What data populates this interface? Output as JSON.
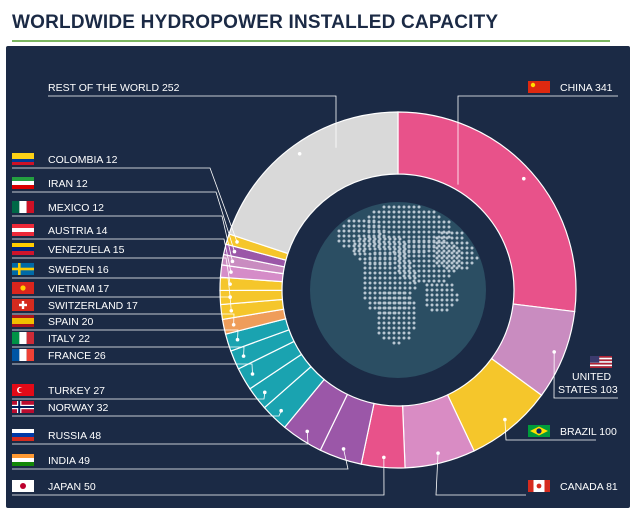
{
  "title": "WORLDWIDE HYDROPOWER INSTALLED CAPACITY",
  "colors": {
    "background": "#1b2a45",
    "title_text": "#1b2a45",
    "title_rule": "#7bb661",
    "globe_outer": "#1b2a45",
    "globe_inner": "#2b4e63",
    "leader_line": "#ffffff"
  },
  "chart_data": {
    "type": "pie",
    "style": "donut",
    "categories": [
      "CHINA",
      "UNITED STATES",
      "BRAZIL",
      "CANADA",
      "JAPAN",
      "INDIA",
      "RUSSIA",
      "NORWAY",
      "TURKEY",
      "FRANCE",
      "ITALY",
      "SPAIN",
      "SWITZERLAND",
      "VIETNAM",
      "SWEDEN",
      "VENEZUELA",
      "AUSTRIA",
      "MEXICO",
      "IRAN",
      "COLOMBIA",
      "REST OF THE WORLD"
    ],
    "values": [
      341,
      103,
      100,
      81,
      50,
      49,
      48,
      32,
      27,
      26,
      22,
      20,
      17,
      17,
      16,
      15,
      14,
      12,
      12,
      12,
      252
    ],
    "slice_colors": [
      "#e8528a",
      "#c98cc0",
      "#f5c62b",
      "#d98cc4",
      "#e8528a",
      "#9b57a8",
      "#9b57a8",
      "#1aa3b0",
      "#1aa3b0",
      "#1aa3b0",
      "#1aa3b0",
      "#1aa3b0",
      "#ef9d5a",
      "#f5c62b",
      "#f5c62b",
      "#f5c62b",
      "#d58cc8",
      "#c98cc0",
      "#9b57a8",
      "#f5c62b",
      "#d9d9d9"
    ],
    "labels": [
      {
        "country": "CHINA",
        "text": "CHINA 341",
        "flag": "china-flag-icon"
      },
      {
        "country": "UNITED STATES",
        "text": "UNITED STATES 103",
        "lines": [
          "UNITED",
          "STATES 103"
        ],
        "flag": "usa-flag-icon"
      },
      {
        "country": "BRAZIL",
        "text": "BRAZIL 100",
        "flag": "brazil-flag-icon"
      },
      {
        "country": "CANADA",
        "text": "CANADA 81",
        "flag": "canada-flag-icon"
      },
      {
        "country": "JAPAN",
        "text": "JAPAN 50",
        "flag": "japan-flag-icon"
      },
      {
        "country": "INDIA",
        "text": "INDIA 49",
        "flag": "india-flag-icon"
      },
      {
        "country": "RUSSIA",
        "text": "RUSSIA 48",
        "flag": "russia-flag-icon"
      },
      {
        "country": "NORWAY",
        "text": "NORWAY 32",
        "flag": "norway-flag-icon"
      },
      {
        "country": "TURKEY",
        "text": "TURKEY 27",
        "flag": "turkey-flag-icon"
      },
      {
        "country": "FRANCE",
        "text": "FRANCE 26",
        "flag": "france-flag-icon"
      },
      {
        "country": "ITALY",
        "text": "ITALY 22",
        "flag": "italy-flag-icon"
      },
      {
        "country": "SPAIN",
        "text": "SPAIN 20",
        "flag": "spain-flag-icon"
      },
      {
        "country": "SWITZERLAND",
        "text": "SWITZERLAND 17",
        "flag": "switzerland-flag-icon"
      },
      {
        "country": "VIETNAM",
        "text": "VIETNAM 17",
        "flag": "vietnam-flag-icon"
      },
      {
        "country": "SWEDEN",
        "text": "SWEDEN 16",
        "flag": "sweden-flag-icon"
      },
      {
        "country": "VENEZUELA",
        "text": "VENEZUELA 15",
        "flag": "venezuela-flag-icon"
      },
      {
        "country": "AUSTRIA",
        "text": "AUSTRIA 14",
        "flag": "austria-flag-icon"
      },
      {
        "country": "MEXICO",
        "text": "MEXICO 12",
        "flag": "mexico-flag-icon"
      },
      {
        "country": "IRAN",
        "text": "IRAN 12",
        "flag": "iran-flag-icon"
      },
      {
        "country": "COLOMBIA",
        "text": "COLOMBIA 12",
        "flag": "colombia-flag-icon"
      },
      {
        "country": "REST OF THE WORLD",
        "text": "REST OF THE WORLD 252",
        "flag": ""
      }
    ],
    "legend": "none",
    "center_graphic": "globe-icon"
  }
}
